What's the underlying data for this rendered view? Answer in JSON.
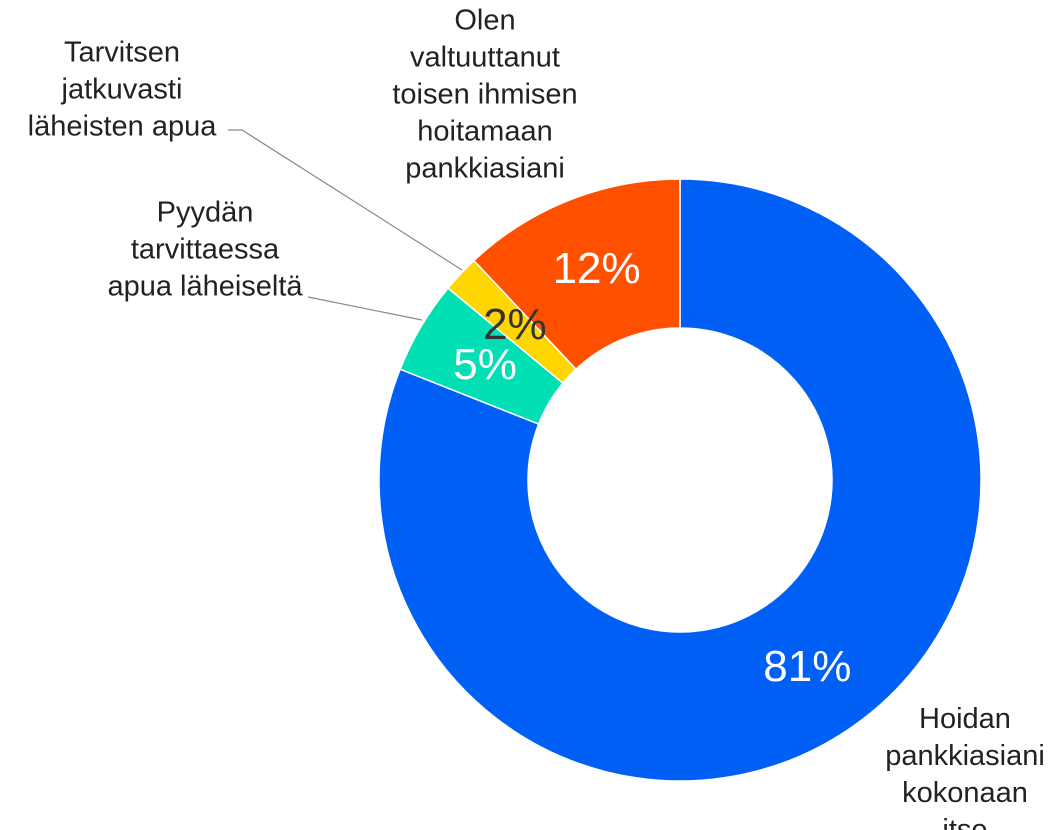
{
  "chart_data": {
    "type": "donut",
    "categories": [
      "Hoidan\npankkiasiani\nkokonaan itse",
      "Pyydän\ntarvittaessa\napua läheiseltä",
      "Tarvitsen\njatkuvasti\nläheisten apua",
      "Olen\nvaltuuttanut\ntoisen ihmisen\nhoitamaan\npankkiasiani"
    ],
    "values": [
      81,
      5,
      2,
      12
    ],
    "value_labels": [
      "81%",
      "5%",
      "2%",
      "12%"
    ],
    "colors": [
      "#0060f5",
      "#00e0b4",
      "#ffd600",
      "#ff5000"
    ]
  }
}
